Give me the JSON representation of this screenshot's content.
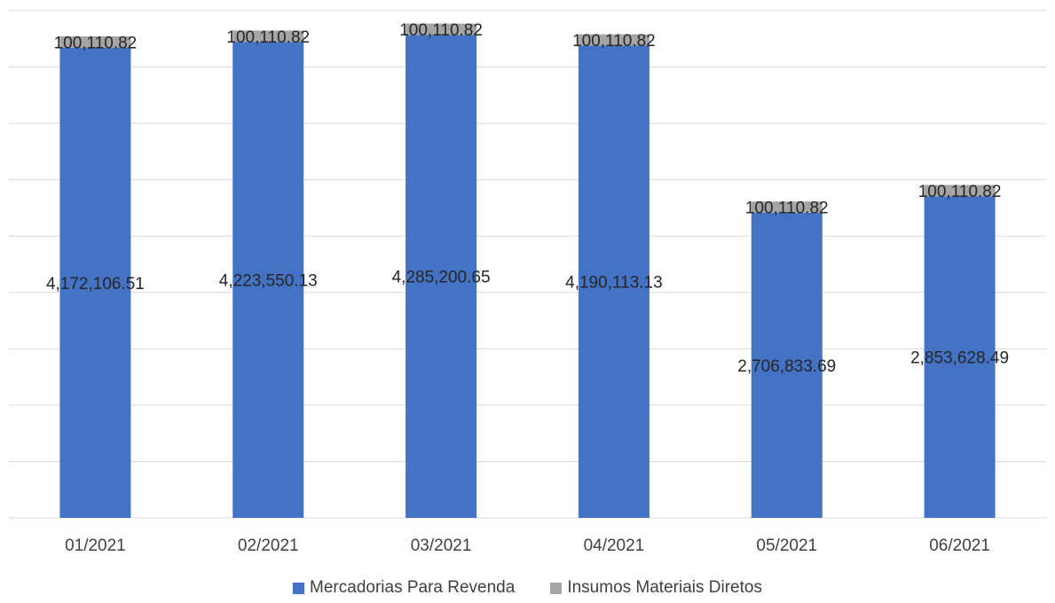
{
  "chart_data": {
    "type": "bar",
    "stacked": true,
    "categories": [
      "01/2021",
      "02/2021",
      "03/2021",
      "04/2021",
      "05/2021",
      "06/2021"
    ],
    "series": [
      {
        "name": "Mercadorias Para Revenda",
        "color": "#4472C4",
        "values": [
          4172106.51,
          4223550.13,
          4285200.65,
          4190113.13,
          2706833.69,
          2853628.49
        ],
        "labels": [
          "4,172,106.51",
          "4,223,550.13",
          "4,285,200.65",
          "4,190,113.13",
          "2,706,833.69",
          "2,853,628.49"
        ]
      },
      {
        "name": "Insumos Materiais Diretos",
        "color": "#A5A5A5",
        "values": [
          100110.82,
          100110.82,
          100110.82,
          100110.82,
          100110.82,
          100110.82
        ],
        "labels": [
          "100,110.82",
          "100,110.82",
          "100,110.82",
          "100,110.82",
          "100,110.82",
          "100,110.82"
        ]
      }
    ],
    "ylim": [
      0,
      4500000
    ],
    "grid": true,
    "gridline_color": "#D9D9D9",
    "legend_position": "bottom"
  }
}
